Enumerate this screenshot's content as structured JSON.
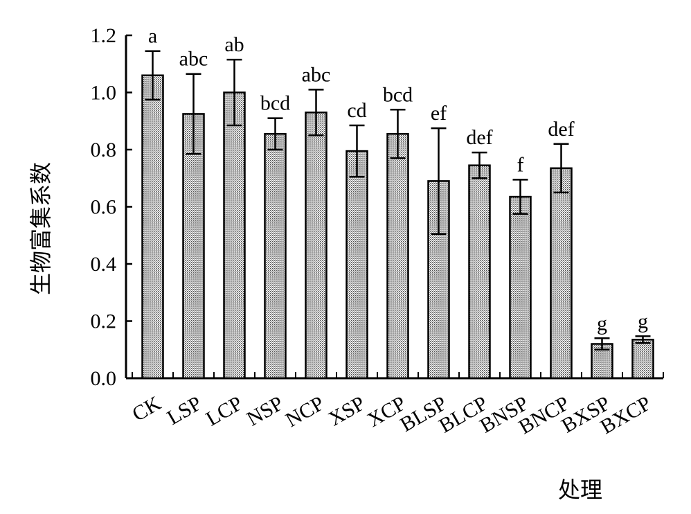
{
  "chart_data": {
    "type": "bar",
    "title": "",
    "xlabel": "处理",
    "ylabel": "生物富集系数",
    "ylim": [
      0,
      1.2
    ],
    "yticks": [
      "0.0",
      "0.2",
      "0.4",
      "0.6",
      "0.8",
      "1.0",
      "1.2"
    ],
    "categories": [
      "CK",
      "LSP",
      "LCP",
      "NSP",
      "NCP",
      "XSP",
      "XCP",
      "BLSP",
      "BLCP",
      "BNSP",
      "BNCP",
      "BXSP",
      "BXCP"
    ],
    "values": [
      1.06,
      0.925,
      1.0,
      0.855,
      0.93,
      0.795,
      0.855,
      0.69,
      0.745,
      0.635,
      0.735,
      0.12,
      0.135
    ],
    "errors": [
      0.085,
      0.14,
      0.115,
      0.055,
      0.08,
      0.09,
      0.085,
      0.185,
      0.045,
      0.06,
      0.085,
      0.02,
      0.012
    ],
    "significance": [
      "a",
      "abc",
      "ab",
      "bcd",
      "abc",
      "cd",
      "bcd",
      "ef",
      "def",
      "f",
      "def",
      "g",
      "g"
    ],
    "grid": false,
    "legend": "none",
    "bar_pattern": "dotted-gray"
  }
}
